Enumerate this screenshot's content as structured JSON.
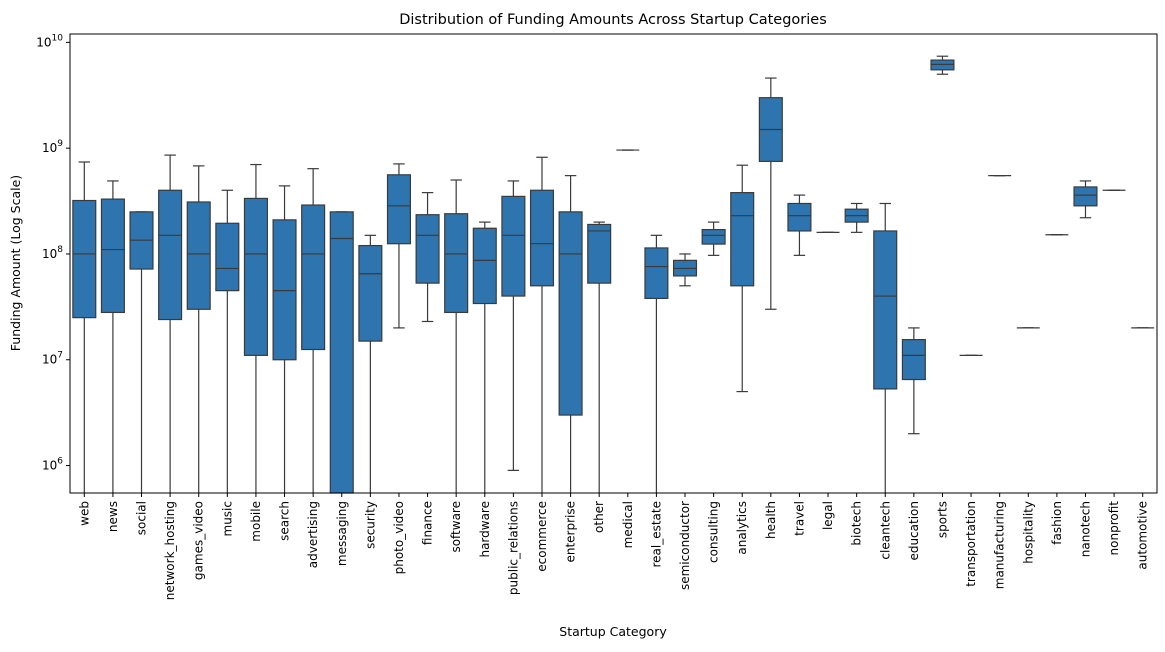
{
  "chart_data": {
    "type": "box",
    "title": "Distribution of Funding Amounts Across Startup Categories",
    "xlabel": "Startup Category",
    "ylabel": "Funding Amount (Log Scale)",
    "yscale": "log",
    "ylim": [
      550000,
      12000000000
    ],
    "y_ticks": [
      {
        "value": 1000000,
        "base": "10",
        "exp": "6"
      },
      {
        "value": 10000000,
        "base": "10",
        "exp": "7"
      },
      {
        "value": 100000000,
        "base": "10",
        "exp": "8"
      },
      {
        "value": 1000000000,
        "base": "10",
        "exp": "9"
      },
      {
        "value": 10000000000,
        "base": "10",
        "exp": "10"
      }
    ],
    "grid": false,
    "box_color": "#2e75b0",
    "line_color": "#3a3a3a",
    "categories": [
      {
        "name": "web",
        "whislo": 550000,
        "q1": 25000000,
        "med": 100000000,
        "q3": 320000000,
        "whishi": 740000000
      },
      {
        "name": "news",
        "whislo": 550000,
        "q1": 28000000,
        "med": 110000000,
        "q3": 330000000,
        "whishi": 490000000
      },
      {
        "name": "social",
        "whislo": 550000,
        "q1": 72000000,
        "med": 135000000,
        "q3": 250000000,
        "whishi": 250000000
      },
      {
        "name": "network_hosting",
        "whislo": 550000,
        "q1": 24000000,
        "med": 150000000,
        "q3": 400000000,
        "whishi": 860000000
      },
      {
        "name": "games_video",
        "whislo": 550000,
        "q1": 30000000,
        "med": 100000000,
        "q3": 310000000,
        "whishi": 680000000
      },
      {
        "name": "music",
        "whislo": 550000,
        "q1": 45000000,
        "med": 73000000,
        "q3": 195000000,
        "whishi": 400000000
      },
      {
        "name": "mobile",
        "whislo": 550000,
        "q1": 11000000,
        "med": 100000000,
        "q3": 335000000,
        "whishi": 700000000
      },
      {
        "name": "search",
        "whislo": 550000,
        "q1": 10000000,
        "med": 45000000,
        "q3": 210000000,
        "whishi": 440000000
      },
      {
        "name": "advertising",
        "whislo": 550000,
        "q1": 12500000,
        "med": 100000000,
        "q3": 290000000,
        "whishi": 640000000
      },
      {
        "name": "messaging",
        "whislo": 550000,
        "q1": 550000,
        "med": 140000000,
        "q3": 250000000,
        "whishi": 250000000
      },
      {
        "name": "security",
        "whislo": 550000,
        "q1": 15000000,
        "med": 65000000,
        "q3": 120000000,
        "whishi": 150000000
      },
      {
        "name": "photo_video",
        "whislo": 20000000,
        "q1": 125000000,
        "med": 285000000,
        "q3": 560000000,
        "whishi": 710000000
      },
      {
        "name": "finance",
        "whislo": 23000000,
        "q1": 53000000,
        "med": 150000000,
        "q3": 235000000,
        "whishi": 380000000
      },
      {
        "name": "software",
        "whislo": 550000,
        "q1": 28000000,
        "med": 100000000,
        "q3": 240000000,
        "whishi": 500000000
      },
      {
        "name": "hardware",
        "whislo": 550000,
        "q1": 34000000,
        "med": 87000000,
        "q3": 175000000,
        "whishi": 200000000
      },
      {
        "name": "public_relations",
        "whislo": 900000,
        "q1": 40000000,
        "med": 150000000,
        "q3": 350000000,
        "whishi": 490000000
      },
      {
        "name": "ecommerce",
        "whislo": 550000,
        "q1": 50000000,
        "med": 125000000,
        "q3": 400000000,
        "whishi": 820000000
      },
      {
        "name": "enterprise",
        "whislo": 550000,
        "q1": 3000000,
        "med": 100000000,
        "q3": 250000000,
        "whishi": 550000000
      },
      {
        "name": "other",
        "whislo": 550000,
        "q1": 53000000,
        "med": 165000000,
        "q3": 190000000,
        "whishi": 200000000
      },
      {
        "name": "medical",
        "whislo": 960000000,
        "q1": 960000000,
        "med": 960000000,
        "q3": 960000000,
        "whishi": 960000000
      },
      {
        "name": "real_estate",
        "whislo": 550000,
        "q1": 38000000,
        "med": 76000000,
        "q3": 114000000,
        "whishi": 150000000
      },
      {
        "name": "semiconductor",
        "whislo": 50000000,
        "q1": 62000000,
        "med": 73000000,
        "q3": 87000000,
        "whishi": 100000000
      },
      {
        "name": "consulting",
        "whislo": 97000000,
        "q1": 124000000,
        "med": 150000000,
        "q3": 170000000,
        "whishi": 200000000
      },
      {
        "name": "analytics",
        "whislo": 5000000,
        "q1": 50000000,
        "med": 230000000,
        "q3": 380000000,
        "whishi": 690000000
      },
      {
        "name": "health",
        "whislo": 30000000,
        "q1": 750000000,
        "med": 1500000000,
        "q3": 3000000000,
        "whishi": 4600000000
      },
      {
        "name": "travel",
        "whislo": 97000000,
        "q1": 165000000,
        "med": 230000000,
        "q3": 300000000,
        "whishi": 360000000
      },
      {
        "name": "legal",
        "whislo": 160000000,
        "q1": 160000000,
        "med": 160000000,
        "q3": 160000000,
        "whishi": 160000000
      },
      {
        "name": "biotech",
        "whislo": 160000000,
        "q1": 200000000,
        "med": 230000000,
        "q3": 265000000,
        "whishi": 300000000
      },
      {
        "name": "cleantech",
        "whislo": 550000,
        "q1": 5300000,
        "med": 40000000,
        "q3": 165000000,
        "whishi": 300000000
      },
      {
        "name": "education",
        "whislo": 2000000,
        "q1": 6500000,
        "med": 11000000,
        "q3": 15500000,
        "whishi": 20000000
      },
      {
        "name": "sports",
        "whislo": 5000000000,
        "q1": 5500000000,
        "med": 6200000000,
        "q3": 6800000000,
        "whishi": 7400000000
      },
      {
        "name": "transportation",
        "whislo": 11000000,
        "q1": 11000000,
        "med": 11000000,
        "q3": 11000000,
        "whishi": 11000000
      },
      {
        "name": "manufacturing",
        "whislo": 550000000,
        "q1": 550000000,
        "med": 550000000,
        "q3": 550000000,
        "whishi": 550000000
      },
      {
        "name": "hospitality",
        "whislo": 20000000,
        "q1": 20000000,
        "med": 20000000,
        "q3": 20000000,
        "whishi": 20000000
      },
      {
        "name": "fashion",
        "whislo": 152000000,
        "q1": 152000000,
        "med": 152000000,
        "q3": 152000000,
        "whishi": 152000000
      },
      {
        "name": "nanotech",
        "whislo": 220000000,
        "q1": 285000000,
        "med": 360000000,
        "q3": 430000000,
        "whishi": 490000000
      },
      {
        "name": "nonprofit",
        "whislo": 400000000,
        "q1": 400000000,
        "med": 400000000,
        "q3": 400000000,
        "whishi": 400000000
      },
      {
        "name": "automotive",
        "whislo": 20000000,
        "q1": 20000000,
        "med": 20000000,
        "q3": 20000000,
        "whishi": 20000000
      }
    ]
  }
}
